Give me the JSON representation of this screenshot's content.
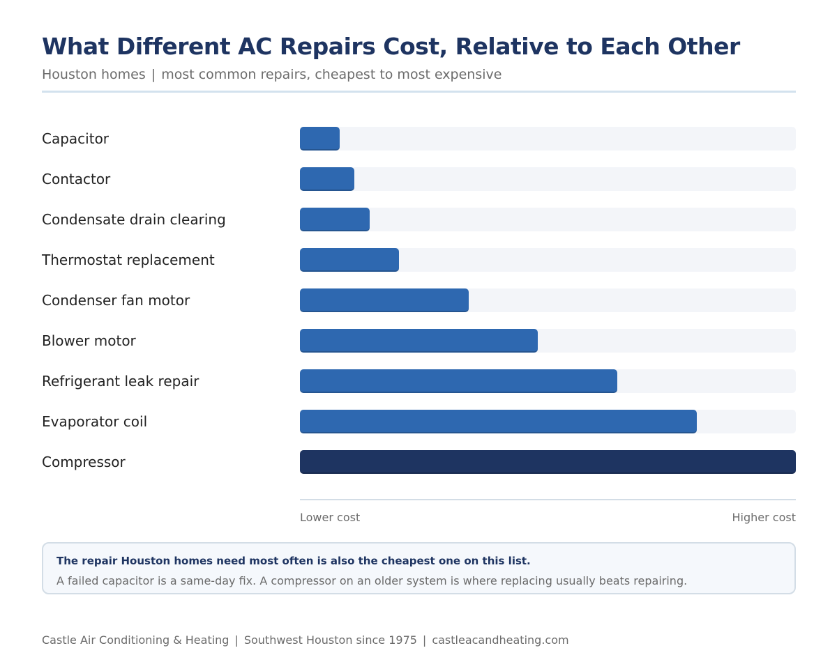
{
  "header": {
    "title": "What Different AC Repairs Cost, Relative to Each Other",
    "subtitle_left": "Houston homes",
    "subtitle_sep": "|",
    "subtitle_right": "most common repairs, cheapest to most expensive"
  },
  "chart_data": {
    "type": "bar",
    "orientation": "horizontal",
    "categories": [
      "Capacitor",
      "Contactor",
      "Condensate drain clearing",
      "Thermostat replacement",
      "Condenser fan motor",
      "Blower motor",
      "Refrigerant leak repair",
      "Evaporator coil",
      "Compressor"
    ],
    "values": [
      8,
      11,
      14,
      20,
      34,
      48,
      64,
      80,
      100
    ],
    "xlim": [
      0,
      100
    ],
    "axis_low_label": "Lower cost",
    "axis_high_label": "Higher cost",
    "grid": false,
    "colors": {
      "bar": "#2e68b0",
      "highlight": "#1e3461",
      "track": "#f3f5f9"
    },
    "highlight_category": "Compressor"
  },
  "callout": {
    "headline": "The repair Houston homes need most often is also the cheapest one on this list.",
    "body": "A failed capacitor is a same-day fix. A compressor on an older system is where replacing usually beats repairing."
  },
  "footer": {
    "company": "Castle Air Conditioning & Heating",
    "tagline": "Southwest Houston since 1975",
    "website": "castleacandheating.com",
    "sep": "|"
  }
}
